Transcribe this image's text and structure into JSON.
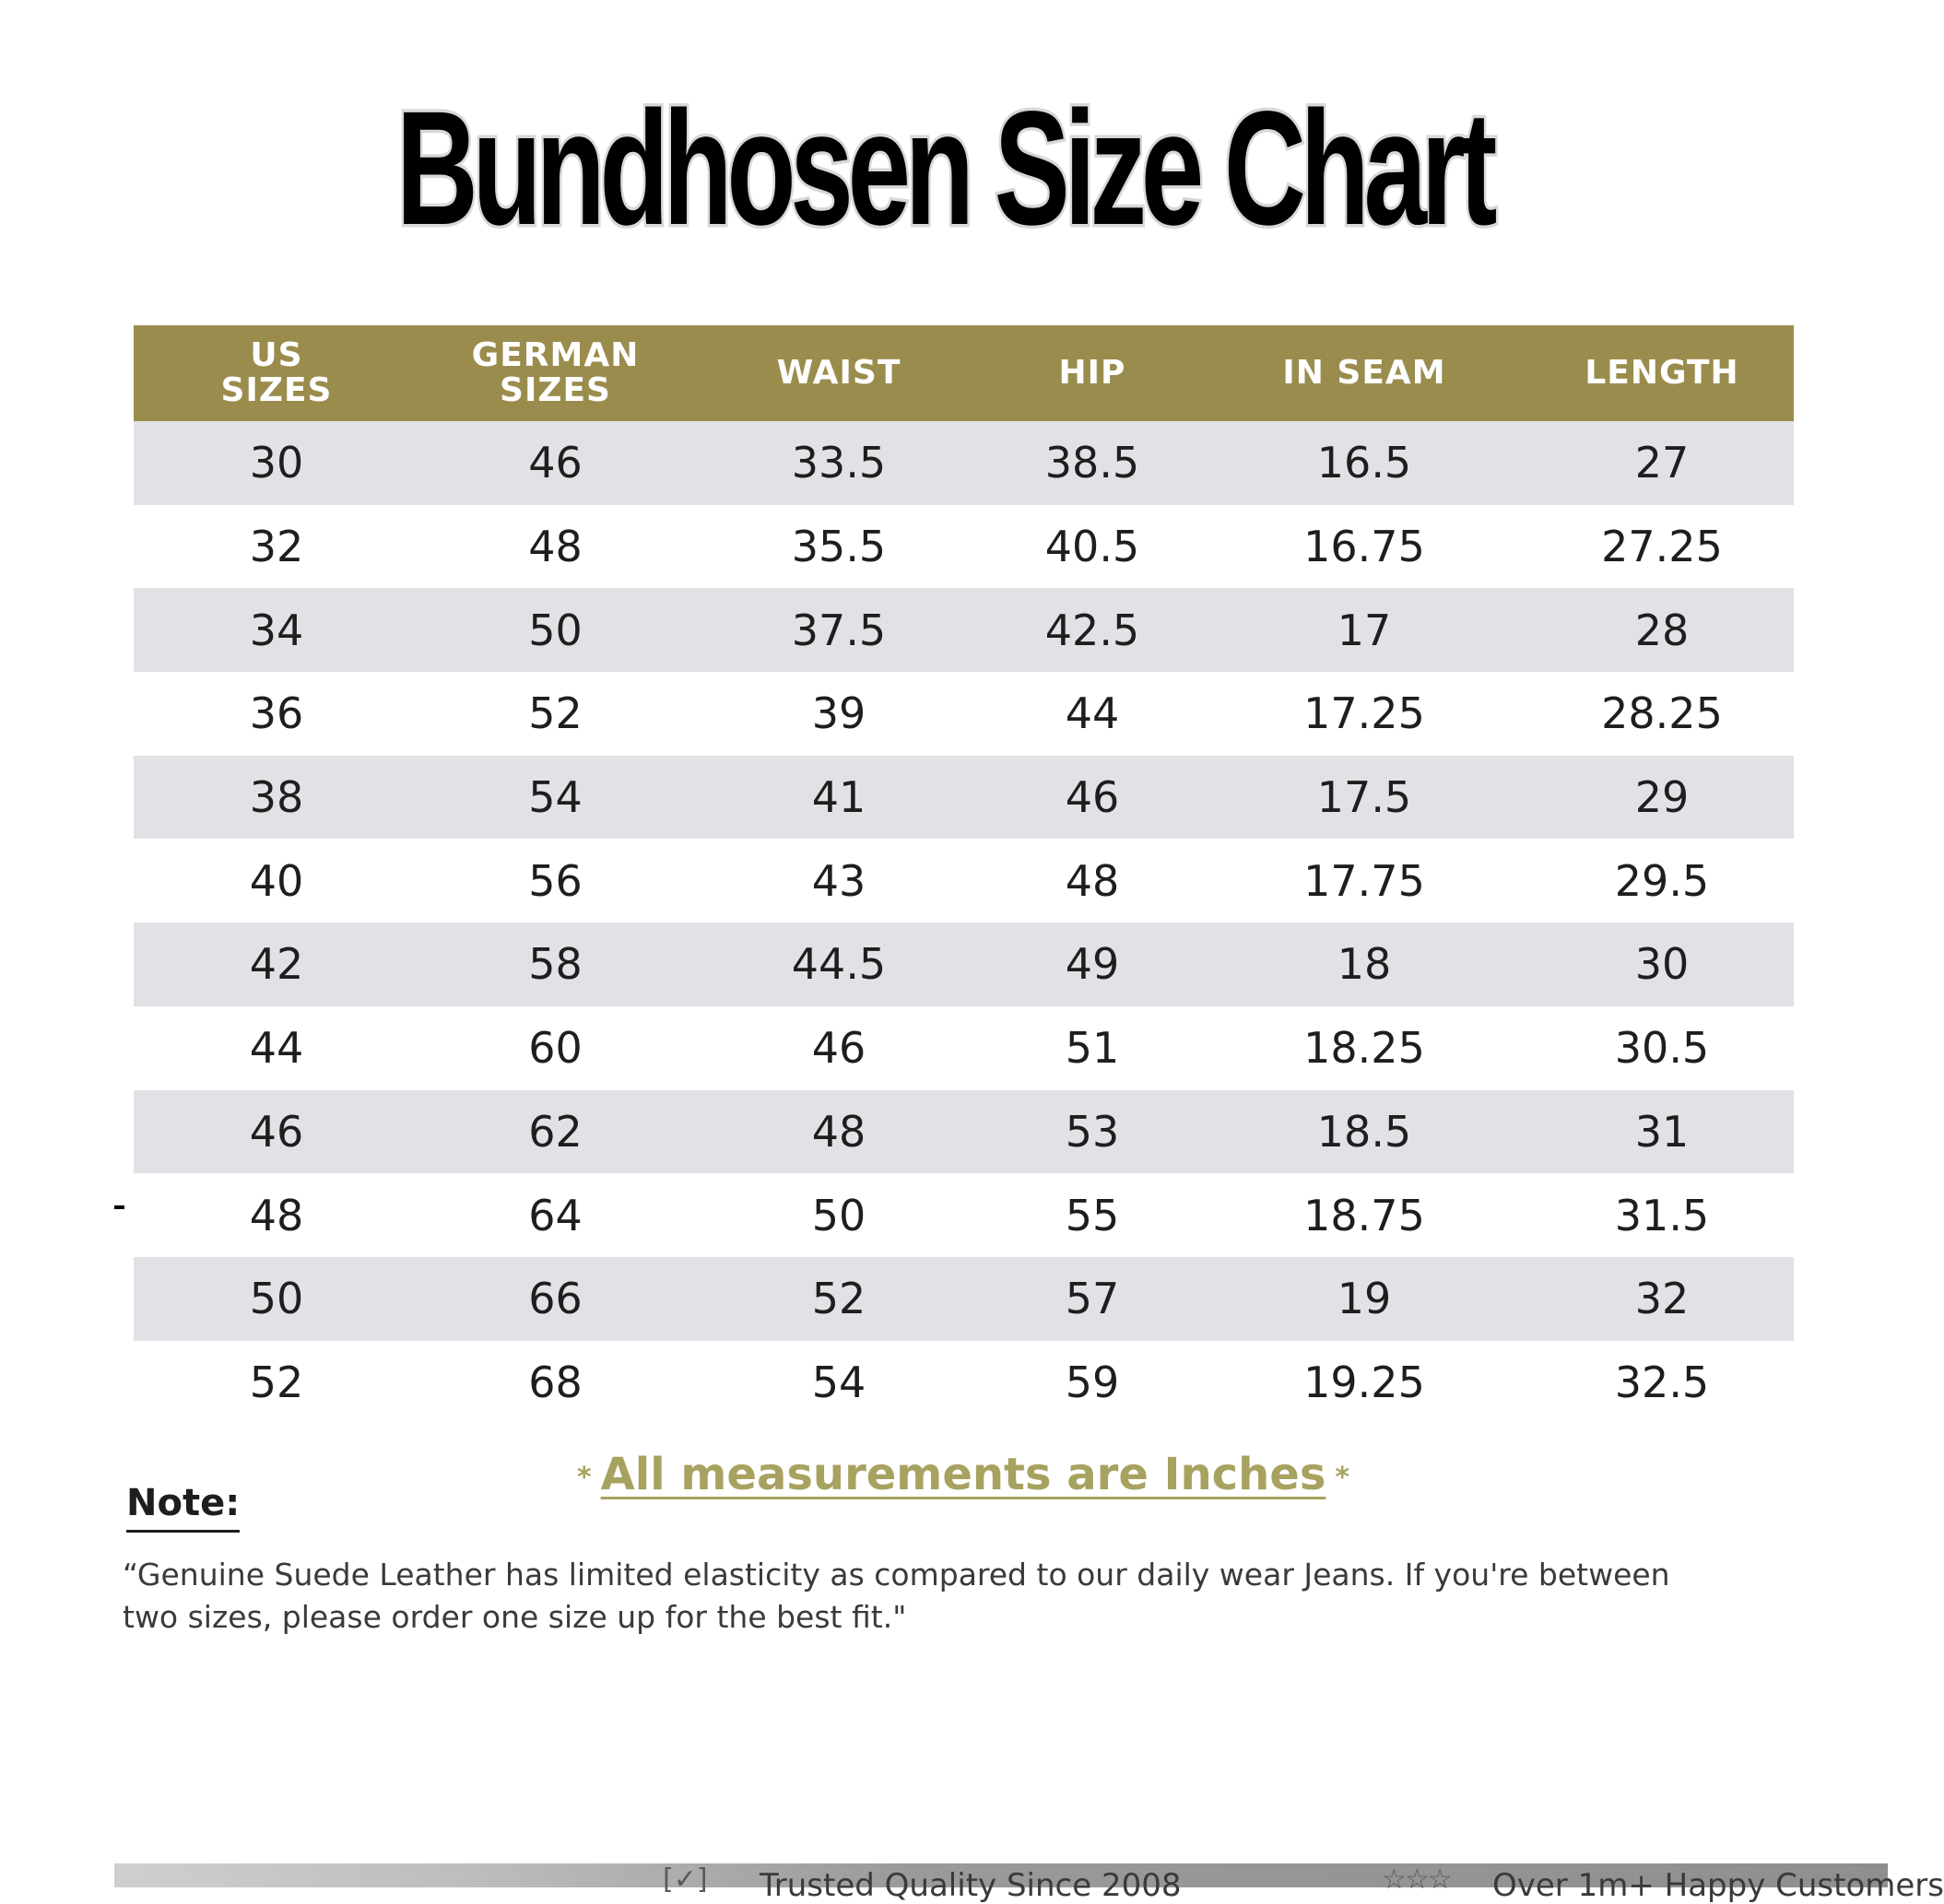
{
  "title": "Bundhosen Size Chart",
  "table": {
    "headers": [
      "US\nSIZES",
      "GERMAN\nSIZES",
      "WAIST",
      "HIP",
      "IN SEAM",
      "LENGTH"
    ],
    "rows": [
      [
        "30",
        "46",
        "33.5",
        "38.5",
        "16.5",
        "27"
      ],
      [
        "32",
        "48",
        "35.5",
        "40.5",
        "16.75",
        "27.25"
      ],
      [
        "34",
        "50",
        "37.5",
        "42.5",
        "17",
        "28"
      ],
      [
        "36",
        "52",
        "39",
        "44",
        "17.25",
        "28.25"
      ],
      [
        "38",
        "54",
        "41",
        "46",
        "17.5",
        "29"
      ],
      [
        "40",
        "56",
        "43",
        "48",
        "17.75",
        "29.5"
      ],
      [
        "42",
        "58",
        "44.5",
        "49",
        "18",
        "30"
      ],
      [
        "44",
        "60",
        "46",
        "51",
        "18.25",
        "30.5"
      ],
      [
        "46",
        "62",
        "48",
        "53",
        "18.5",
        "31"
      ],
      [
        "48",
        "64",
        "50",
        "55",
        "18.75",
        "31.5"
      ],
      [
        "50",
        "66",
        "52",
        "57",
        "19",
        "32"
      ],
      [
        "52",
        "68",
        "54",
        "59",
        "19.25",
        "32.5"
      ]
    ]
  },
  "measurement_note": "All measurements are Inches",
  "measurement_star": "*",
  "note": {
    "heading": "Note:",
    "text": "“Genuine Suede Leather has limited elasticity as compared to our daily wear Jeans. If you're between two sizes, please order one size up for the best fit.\""
  },
  "footer": {
    "left_text": "Trusted Quality Since 2008",
    "right_text": "Over 1m+ Happy Customers",
    "left_icon": "check-icon",
    "right_icon": "stars-icon"
  },
  "colors": {
    "header_bg": "#9a8c4c",
    "row_shade": "#e2e2e6",
    "accent_text": "#a8a260"
  }
}
